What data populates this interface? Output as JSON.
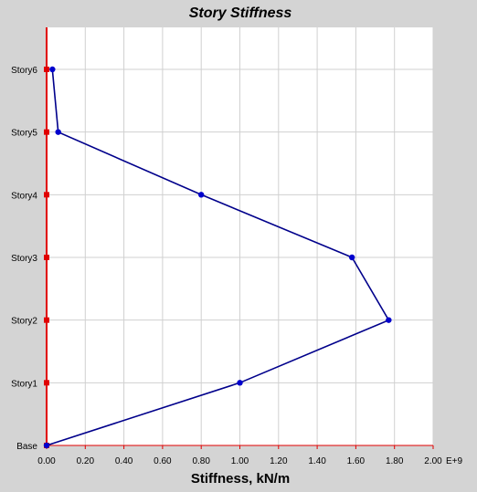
{
  "chart_data": {
    "type": "line",
    "title": "Story Stiffness",
    "xlabel": "Stiffness, kN/m",
    "ylabel": "",
    "x_unit_suffix": "E+9",
    "xlim": [
      0,
      2.0
    ],
    "x_ticks": [
      "0.00",
      "0.20",
      "0.40",
      "0.60",
      "0.80",
      "1.00",
      "1.20",
      "1.40",
      "1.60",
      "1.80",
      "2.00"
    ],
    "categories": [
      "Base",
      "Story1",
      "Story2",
      "Story3",
      "Story4",
      "Story5",
      "Story6"
    ],
    "grid": true,
    "series": [
      {
        "values": [
          0.0,
          1.0,
          1.77,
          1.58,
          0.8,
          0.06,
          0.03
        ],
        "color": "#00008b"
      }
    ],
    "colors": {
      "plot_background": "#ffffff",
      "frame_background": "#d4d4d4",
      "gridline": "#d0d0d0",
      "axis": "#e00000",
      "series_line": "#00008b",
      "series_marker": "#0000cd",
      "axis_marker": "#e00000"
    }
  }
}
